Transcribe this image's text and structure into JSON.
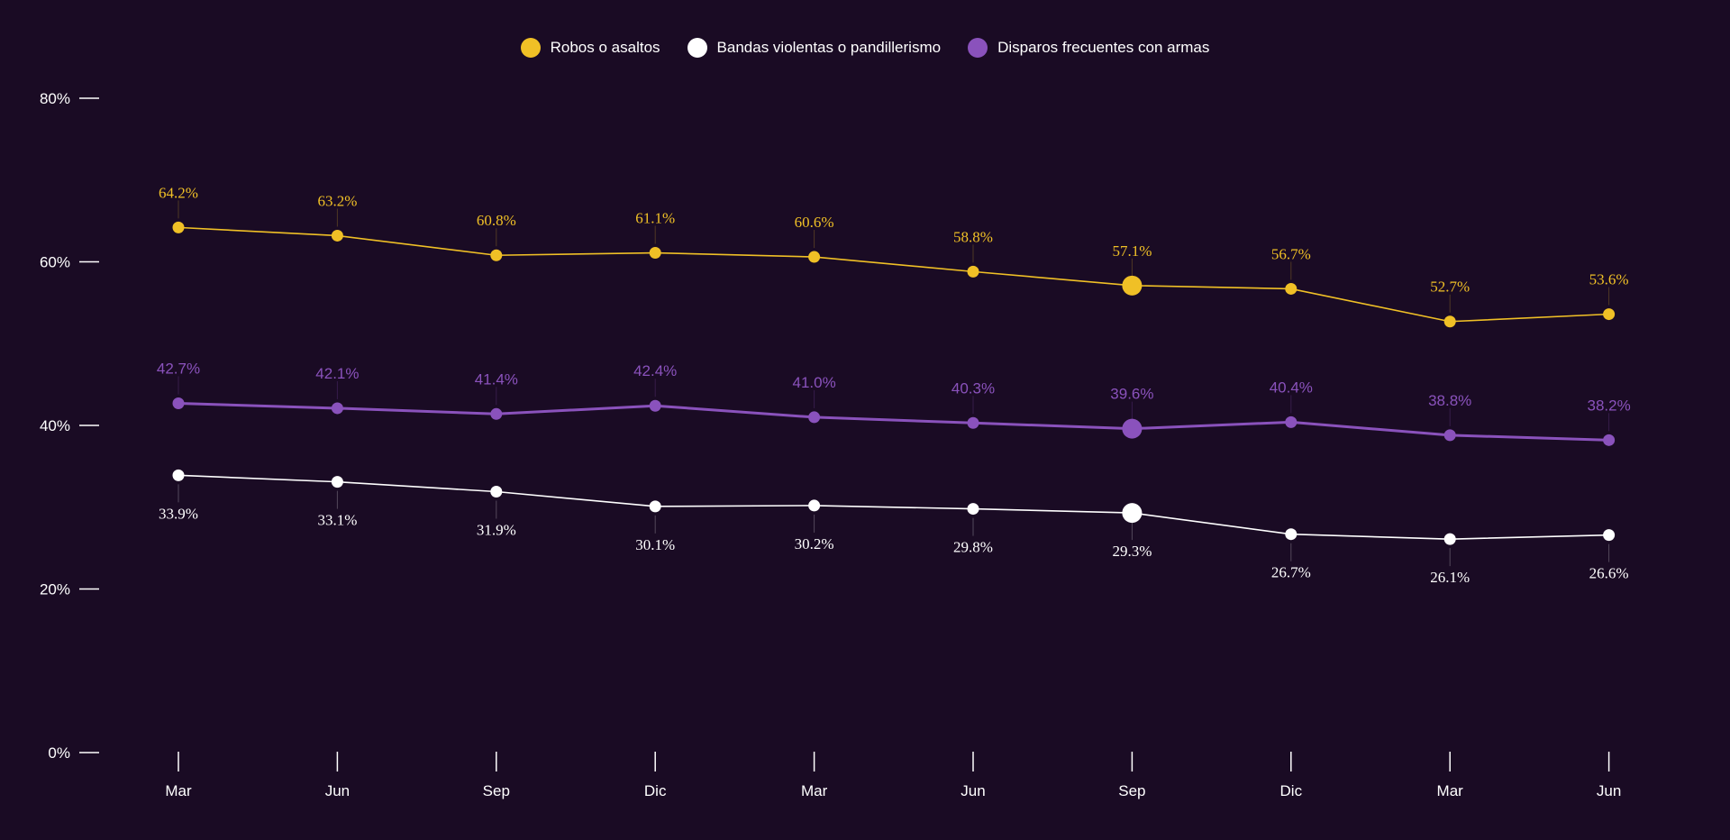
{
  "colors": {
    "background": "#1a0b24",
    "series": [
      "#f0c026",
      "#ffffff",
      "#8a52bc"
    ]
  },
  "chart_data": {
    "type": "line",
    "categories": [
      "Mar",
      "Jun",
      "Sep",
      "Dic",
      "Mar",
      "Jun",
      "Sep",
      "Dic",
      "Mar",
      "Jun"
    ],
    "y_ticks": [
      "0%",
      "20%",
      "40%",
      "60%",
      "80%"
    ],
    "ylim": [
      0,
      80
    ],
    "highlight_index": 6,
    "series": [
      {
        "name": "Robos o asaltos",
        "color": "#f0c026",
        "values": [
          64.2,
          63.2,
          60.8,
          61.1,
          60.6,
          58.8,
          57.1,
          56.7,
          52.7,
          53.6
        ],
        "labels": [
          "64.2%",
          "63.2%",
          "60.8%",
          "61.1%",
          "60.6%",
          "58.8%",
          "57.1%",
          "56.7%",
          "52.7%",
          "53.6%"
        ],
        "label_position": "above"
      },
      {
        "name": "Bandas violentas o pandillerismo",
        "color": "#ffffff",
        "values": [
          33.9,
          33.1,
          31.9,
          30.1,
          30.2,
          29.8,
          29.3,
          26.7,
          26.1,
          26.6
        ],
        "labels": [
          "33.9%",
          "33.1%",
          "31.9%",
          "30.1%",
          "30.2%",
          "29.8%",
          "29.3%",
          "26.7%",
          "26.1%",
          "26.6%"
        ],
        "label_position": "below"
      },
      {
        "name": "Disparos frecuentes con armas",
        "color": "#8a52bc",
        "values": [
          42.7,
          42.1,
          41.4,
          42.4,
          41.0,
          40.3,
          39.6,
          40.4,
          38.8,
          38.2
        ],
        "labels": [
          "42.7%",
          "42.1%",
          "41.4%",
          "42.4%",
          "41.0%",
          "40.3%",
          "39.6%",
          "40.4%",
          "38.8%",
          "38.2%"
        ],
        "label_position": "above"
      }
    ]
  }
}
